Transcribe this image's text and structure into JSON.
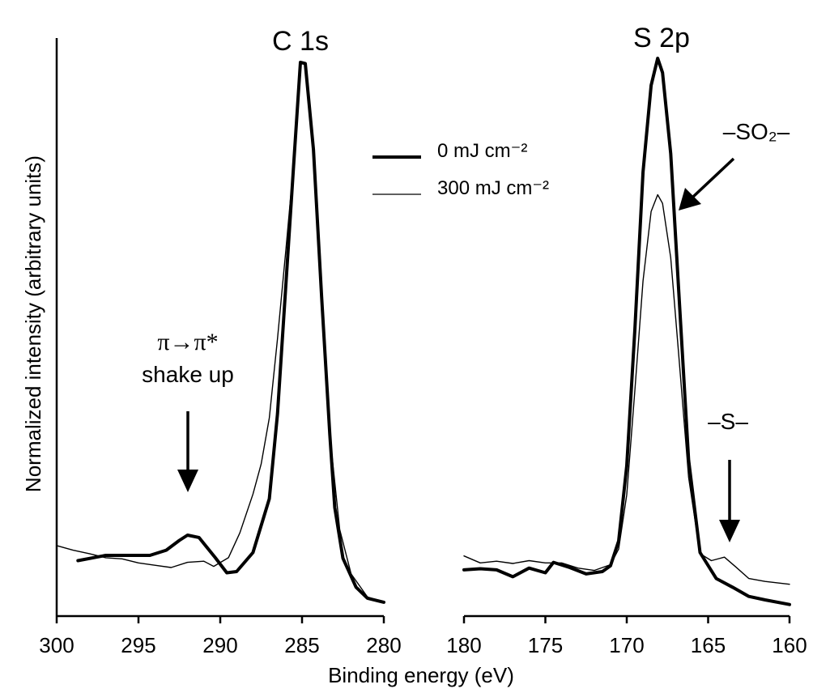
{
  "chart_data": [
    {
      "type": "line",
      "panel": "C 1s",
      "title": "C 1s",
      "xlim": [
        300,
        280
      ],
      "x_reversed": true,
      "ylim": [
        0,
        1
      ],
      "xticks": [
        300,
        295,
        290,
        285,
        280
      ],
      "series": [
        {
          "name": "0 mJ cm⁻²",
          "stroke": "thick",
          "x": [
            298.7,
            297,
            295.7,
            294.3,
            293.3,
            292.5,
            292.0,
            291.3,
            290.3,
            289.6,
            289.0,
            288.0,
            287.0,
            286.5,
            286.0,
            285.5,
            285.1,
            284.8,
            284.3,
            283.8,
            283.3,
            283.0,
            282.5,
            281.7,
            281.0,
            280.0
          ],
          "y": [
            0.096,
            0.105,
            0.105,
            0.105,
            0.114,
            0.131,
            0.14,
            0.136,
            0.101,
            0.075,
            0.077,
            0.11,
            0.203,
            0.35,
            0.568,
            0.786,
            0.958,
            0.956,
            0.807,
            0.552,
            0.314,
            0.188,
            0.1,
            0.05,
            0.031,
            0.024
          ]
        },
        {
          "name": "300 mJ cm⁻²",
          "stroke": "thin",
          "x": [
            300,
            299,
            298,
            297,
            296,
            295,
            294,
            293,
            292,
            291,
            290.4,
            289.5,
            288.8,
            288.0,
            287.5,
            287.0,
            286.5,
            286.0,
            285.5,
            285.1,
            284.8,
            284.3,
            283.8,
            283.3,
            282.7,
            282.0,
            281.0,
            280.0
          ],
          "y": [
            0.122,
            0.114,
            0.108,
            0.101,
            0.099,
            0.092,
            0.088,
            0.084,
            0.093,
            0.095,
            0.086,
            0.101,
            0.144,
            0.211,
            0.263,
            0.343,
            0.48,
            0.63,
            0.786,
            0.958,
            0.956,
            0.807,
            0.552,
            0.314,
            0.15,
            0.073,
            0.033,
            0.024
          ]
        }
      ],
      "annotations": [
        "π→π*",
        "shake up"
      ]
    },
    {
      "type": "line",
      "panel": "S 2p",
      "title": "S 2p",
      "xlim": [
        180,
        160
      ],
      "x_reversed": true,
      "ylim": [
        0,
        1
      ],
      "xticks": [
        180,
        175,
        170,
        165,
        160
      ],
      "series": [
        {
          "name": "0 mJ cm⁻²",
          "stroke": "thick",
          "x": [
            180,
            179,
            178,
            177,
            176,
            175,
            174.5,
            173.5,
            172.5,
            171.5,
            171.0,
            170.5,
            170.0,
            169.5,
            169.0,
            168.5,
            168.1,
            167.8,
            167.3,
            166.8,
            166.2,
            165.5,
            164.5,
            163.5,
            162.5,
            161.5,
            160.0
          ],
          "y": [
            0.08,
            0.082,
            0.08,
            0.068,
            0.083,
            0.075,
            0.093,
            0.084,
            0.073,
            0.077,
            0.087,
            0.13,
            0.26,
            0.495,
            0.768,
            0.918,
            0.965,
            0.94,
            0.8,
            0.56,
            0.27,
            0.11,
            0.065,
            0.05,
            0.034,
            0.028,
            0.02
          ]
        },
        {
          "name": "300 mJ cm⁻²",
          "stroke": "thin",
          "x": [
            180,
            179,
            178,
            177,
            176,
            175,
            174,
            173,
            172,
            171,
            170.5,
            170.0,
            169.5,
            169.0,
            168.5,
            168.1,
            167.8,
            167.3,
            166.8,
            166.2,
            165.5,
            164.8,
            164.0,
            163.3,
            162.5,
            161.5,
            160.0
          ],
          "y": [
            0.104,
            0.092,
            0.095,
            0.091,
            0.096,
            0.092,
            0.092,
            0.083,
            0.079,
            0.089,
            0.116,
            0.21,
            0.39,
            0.58,
            0.7,
            0.729,
            0.714,
            0.62,
            0.45,
            0.24,
            0.108,
            0.096,
            0.102,
            0.085,
            0.065,
            0.06,
            0.055
          ]
        }
      ],
      "annotations": [
        "–SO₂–",
        "–S–"
      ]
    }
  ],
  "axes": {
    "xlabel": "Binding energy (eV)",
    "ylabel": "Normalized intensity (arbitrary units)"
  },
  "legend": {
    "items": [
      {
        "label": "0 mJ cm⁻²",
        "stroke": "thick"
      },
      {
        "label": "300 mJ cm⁻²",
        "stroke": "thin"
      }
    ]
  },
  "annotations_text": {
    "pi_line": "π→π*",
    "shake_up": "shake up",
    "so2": "–SO₂–",
    "s": "–S–"
  }
}
